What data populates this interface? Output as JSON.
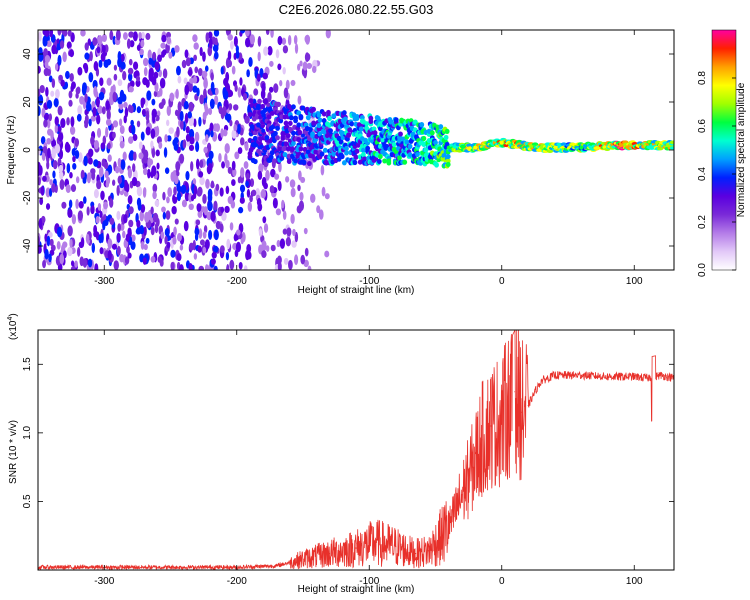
{
  "title": "C2E6.2026.080.22.55.G03",
  "colors": {
    "signal": "#e8302a",
    "axis": "#000000"
  },
  "chart_data": [
    {
      "type": "heatmap",
      "name": "spectrogram",
      "xlabel": "Height of straight line (km)",
      "ylabel": "Frequency (Hz)",
      "xlim": [
        -350,
        130
      ],
      "ylim": [
        -50,
        50
      ],
      "x_ticks": [
        -300,
        -200,
        -100,
        0,
        100
      ],
      "x_tick_labels": [
        "-300",
        "-200",
        "-100",
        "0",
        "100"
      ],
      "y_ticks": [
        -40,
        -20,
        0,
        20,
        40
      ],
      "y_tick_labels": [
        "-40",
        "-20",
        "0",
        "20",
        "40"
      ],
      "colorbar": {
        "label": "Normalized spectral amplitude",
        "range": [
          0.0,
          1.0
        ],
        "ticks": [
          0.0,
          0.2,
          0.4,
          0.6,
          0.8
        ],
        "tick_labels": [
          "0.0",
          "0.2",
          "0.4",
          "0.6",
          "0.8"
        ],
        "stops": [
          "#ffffff",
          "#e2c8f8",
          "#b47ce8",
          "#7a2ad8",
          "#5a00e0",
          "#0020ff",
          "#00a0ff",
          "#00ffd0",
          "#00ff40",
          "#a0ff00",
          "#ffff00",
          "#ffa000",
          "#ff2000",
          "#ff00a0"
        ]
      },
      "tones": [
        {
          "x": -180,
          "f": 8,
          "amp": 0.35
        },
        {
          "x": -150,
          "f": 6,
          "amp": 0.4
        },
        {
          "x": -120,
          "f": 5,
          "amp": 0.45
        },
        {
          "x": -90,
          "f": 4,
          "amp": 0.5
        },
        {
          "x": -60,
          "f": 3,
          "amp": 0.55
        },
        {
          "x": -40,
          "f": 1,
          "amp": 0.6
        },
        {
          "x": -20,
          "f": 1,
          "amp": 0.75
        },
        {
          "x": 0,
          "f": 3,
          "amp": 0.8
        },
        {
          "x": 30,
          "f": 1,
          "amp": 0.7
        },
        {
          "x": 60,
          "f": 1,
          "amp": 0.65
        },
        {
          "x": 90,
          "f": 2,
          "amp": 0.85
        },
        {
          "x": 125,
          "f": 2,
          "amp": 0.7
        }
      ]
    },
    {
      "type": "line",
      "name": "snr",
      "xlabel": "Height of straight line (km)",
      "ylabel": "SNR (10 * v/v)",
      "y_multiplier_label": "(x10",
      "y_multiplier_exp": "4",
      "y_multiplier_close": ")",
      "xlim": [
        -350,
        130
      ],
      "ylim": [
        0,
        1.75
      ],
      "x_ticks": [
        -300,
        -200,
        -100,
        0,
        100
      ],
      "x_tick_labels": [
        "-300",
        "-200",
        "-100",
        "0",
        "100"
      ],
      "y_ticks": [
        0.5,
        1.0,
        1.5
      ],
      "y_tick_labels": [
        "0.5",
        "1.0",
        "1.5"
      ],
      "series": [
        {
          "name": "SNR",
          "x": [
            -350,
            -300,
            -250,
            -200,
            -170,
            -150,
            -130,
            -110,
            -95,
            -80,
            -65,
            -55,
            -45,
            -38,
            -30,
            -22,
            -15,
            -8,
            0,
            5,
            10,
            15,
            20,
            25,
            30,
            40,
            60,
            80,
            100,
            110,
            120,
            130
          ],
          "y": [
            0.02,
            0.02,
            0.02,
            0.02,
            0.03,
            0.08,
            0.12,
            0.16,
            0.2,
            0.17,
            0.12,
            0.14,
            0.25,
            0.35,
            0.55,
            0.75,
            0.95,
            1.05,
            1.1,
            1.2,
            1.3,
            1.15,
            1.2,
            1.3,
            1.38,
            1.42,
            1.42,
            1.41,
            1.41,
            1.4,
            1.42,
            1.4
          ]
        }
      ]
    }
  ]
}
